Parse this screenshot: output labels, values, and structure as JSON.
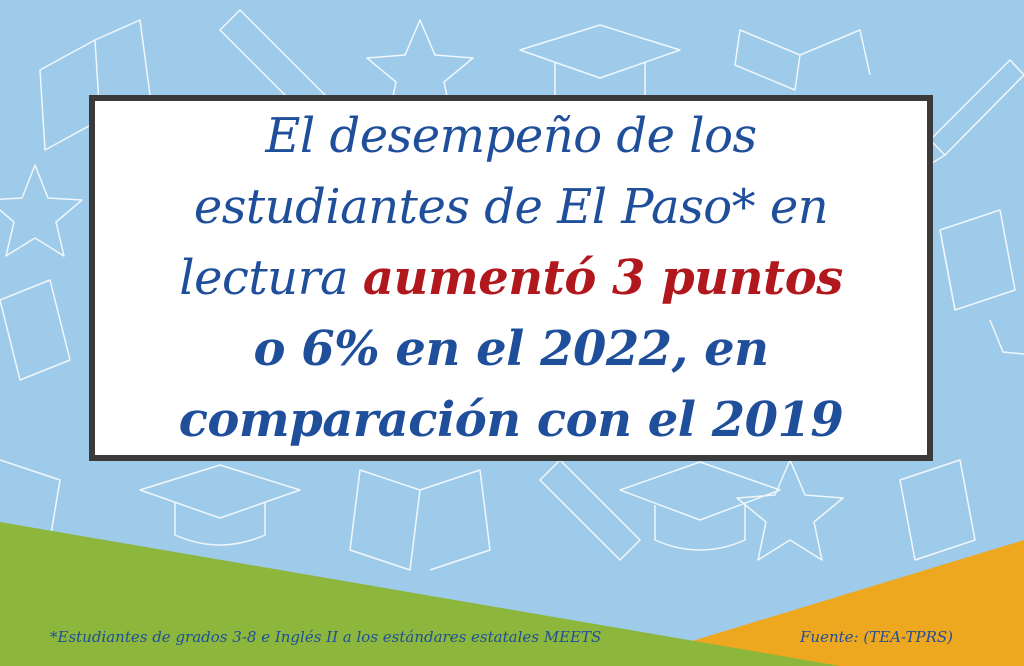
{
  "headline": {
    "line1": "El desempeño de los",
    "line2": "estudiantes de El Paso* en",
    "line3_start": "lectura",
    "line3_highlight": "aumentó 3 puntos",
    "line4": "o 6% en el 2022, en",
    "line5": "comparación con el 2019"
  },
  "footnote": "*Estudiantes de grados 3-8 e Inglés II a los estándares estatales MEETS",
  "source": "Fuente: (TEA-TPRS)",
  "colors": {
    "background_sky": "#9ecbea",
    "headline_blue": "#1f4f9a",
    "highlight_red": "#b0181e",
    "green_band": "#8cb63c",
    "orange_band": "#eea81f",
    "card_border": "#3a3a3a"
  },
  "icons": [
    "open-book-icon",
    "graduation-cap-icon",
    "star-icon",
    "pencil-icon"
  ]
}
